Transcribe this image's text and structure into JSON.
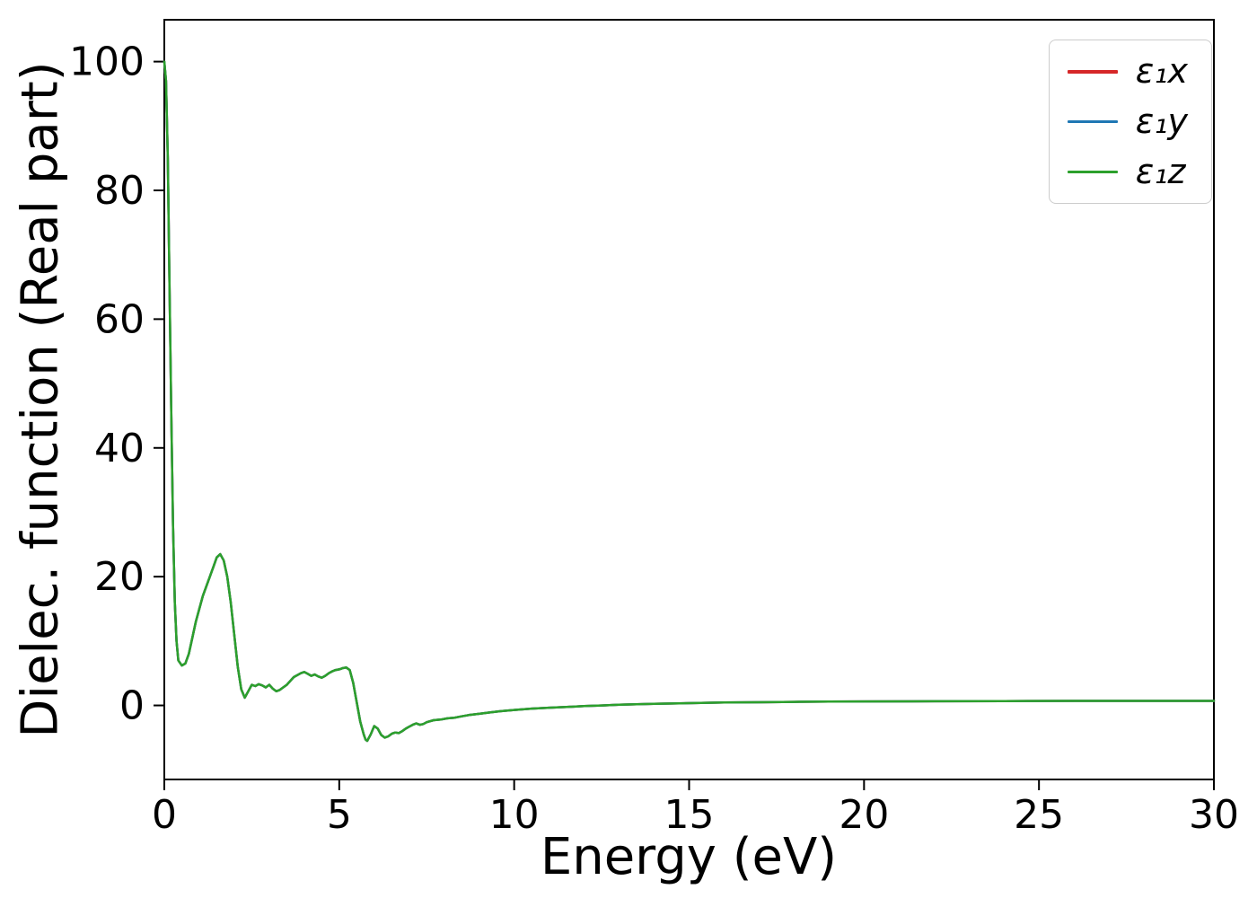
{
  "chart_data": {
    "type": "line",
    "title": "",
    "xlabel": "Energy (eV)",
    "ylabel": "Dielec. function (Real part)",
    "xlim": [
      0,
      30
    ],
    "ylim": [
      -11.5,
      106.5
    ],
    "xticks": [
      0,
      5,
      10,
      15,
      20,
      25,
      30
    ],
    "yticks": [
      0,
      20,
      40,
      60,
      80,
      100
    ],
    "grid": false,
    "legend_position": "upper right",
    "note": "All three series overlap almost exactly; the green (last-drawn) curve is the visible one.",
    "x": [
      0,
      0.05,
      0.1,
      0.15,
      0.2,
      0.25,
      0.3,
      0.35,
      0.4,
      0.5,
      0.6,
      0.7,
      0.8,
      0.9,
      1.0,
      1.1,
      1.2,
      1.3,
      1.4,
      1.5,
      1.6,
      1.7,
      1.8,
      1.9,
      2.0,
      2.1,
      2.2,
      2.3,
      2.4,
      2.5,
      2.6,
      2.7,
      2.8,
      2.9,
      3.0,
      3.1,
      3.2,
      3.3,
      3.5,
      3.7,
      3.9,
      4.0,
      4.1,
      4.2,
      4.3,
      4.4,
      4.5,
      4.6,
      4.7,
      4.8,
      4.9,
      5.0,
      5.1,
      5.2,
      5.3,
      5.4,
      5.5,
      5.6,
      5.7,
      5.75,
      5.8,
      5.9,
      6.0,
      6.1,
      6.2,
      6.3,
      6.4,
      6.5,
      6.6,
      6.7,
      6.8,
      6.9,
      7.0,
      7.1,
      7.2,
      7.3,
      7.4,
      7.5,
      7.7,
      7.9,
      8.1,
      8.3,
      8.5,
      8.7,
      9.0,
      9.3,
      9.6,
      10.0,
      10.5,
      11.0,
      11.5,
      12.0,
      12.5,
      13.0,
      14.0,
      15.0,
      16.0,
      17.0,
      18.0,
      19.0,
      20.0,
      22.0,
      24.0,
      26.0,
      28.0,
      30.0
    ],
    "series": [
      {
        "label": "ε₁x",
        "color": "#d62728",
        "values": [
          100,
          97,
          85,
          65,
          45,
          28,
          16,
          10,
          7,
          6.2,
          6.5,
          8.0,
          10.5,
          13,
          15,
          17,
          18.5,
          20,
          21.5,
          23,
          23.5,
          22.5,
          20,
          16,
          11,
          6,
          2.5,
          1.2,
          2.2,
          3.2,
          3.0,
          3.3,
          3.1,
          2.8,
          3.2,
          2.6,
          2.2,
          2.4,
          3.2,
          4.4,
          5.0,
          5.2,
          4.9,
          4.6,
          4.8,
          4.5,
          4.3,
          4.6,
          5.0,
          5.3,
          5.5,
          5.6,
          5.8,
          5.9,
          5.5,
          3.5,
          0.5,
          -2.5,
          -4.5,
          -5.3,
          -5.5,
          -4.5,
          -3.2,
          -3.6,
          -4.6,
          -5.0,
          -4.8,
          -4.4,
          -4.2,
          -4.3,
          -4.0,
          -3.6,
          -3.3,
          -3.0,
          -2.8,
          -3.0,
          -2.9,
          -2.6,
          -2.3,
          -2.2,
          -2.0,
          -1.9,
          -1.7,
          -1.5,
          -1.3,
          -1.1,
          -0.9,
          -0.7,
          -0.5,
          -0.35,
          -0.25,
          -0.1,
          0.0,
          0.1,
          0.25,
          0.35,
          0.45,
          0.5,
          0.55,
          0.6,
          0.62,
          0.65,
          0.68,
          0.7,
          0.7,
          0.7
        ]
      },
      {
        "label": "ε₁y",
        "color": "#1f77b4",
        "values": [
          100,
          97,
          85,
          65,
          45,
          28,
          16,
          10,
          7,
          6.2,
          6.5,
          8.0,
          10.5,
          13,
          15,
          17,
          18.5,
          20,
          21.5,
          23,
          23.5,
          22.5,
          20,
          16,
          11,
          6,
          2.5,
          1.2,
          2.2,
          3.2,
          3.0,
          3.3,
          3.1,
          2.8,
          3.2,
          2.6,
          2.2,
          2.4,
          3.2,
          4.4,
          5.0,
          5.2,
          4.9,
          4.6,
          4.8,
          4.5,
          4.3,
          4.6,
          5.0,
          5.3,
          5.5,
          5.6,
          5.8,
          5.9,
          5.5,
          3.5,
          0.5,
          -2.5,
          -4.5,
          -5.3,
          -5.5,
          -4.5,
          -3.2,
          -3.6,
          -4.6,
          -5.0,
          -4.8,
          -4.4,
          -4.2,
          -4.3,
          -4.0,
          -3.6,
          -3.3,
          -3.0,
          -2.8,
          -3.0,
          -2.9,
          -2.6,
          -2.3,
          -2.2,
          -2.0,
          -1.9,
          -1.7,
          -1.5,
          -1.3,
          -1.1,
          -0.9,
          -0.7,
          -0.5,
          -0.35,
          -0.25,
          -0.1,
          0.0,
          0.1,
          0.25,
          0.35,
          0.45,
          0.5,
          0.55,
          0.6,
          0.62,
          0.65,
          0.68,
          0.7,
          0.7,
          0.7
        ]
      },
      {
        "label": "ε₁z",
        "color": "#2ca02c",
        "values": [
          100,
          97,
          85,
          65,
          45,
          28,
          16,
          10,
          7,
          6.2,
          6.5,
          8.0,
          10.5,
          13,
          15,
          17,
          18.5,
          20,
          21.5,
          23,
          23.5,
          22.5,
          20,
          16,
          11,
          6,
          2.5,
          1.2,
          2.2,
          3.2,
          3.0,
          3.3,
          3.1,
          2.8,
          3.2,
          2.6,
          2.2,
          2.4,
          3.2,
          4.4,
          5.0,
          5.2,
          4.9,
          4.6,
          4.8,
          4.5,
          4.3,
          4.6,
          5.0,
          5.3,
          5.5,
          5.6,
          5.8,
          5.9,
          5.5,
          3.5,
          0.5,
          -2.5,
          -4.5,
          -5.3,
          -5.5,
          -4.5,
          -3.2,
          -3.6,
          -4.6,
          -5.0,
          -4.8,
          -4.4,
          -4.2,
          -4.3,
          -4.0,
          -3.6,
          -3.3,
          -3.0,
          -2.8,
          -3.0,
          -2.9,
          -2.6,
          -2.3,
          -2.2,
          -2.0,
          -1.9,
          -1.7,
          -1.5,
          -1.3,
          -1.1,
          -0.9,
          -0.7,
          -0.5,
          -0.35,
          -0.25,
          -0.1,
          0.0,
          0.1,
          0.25,
          0.35,
          0.45,
          0.5,
          0.55,
          0.6,
          0.62,
          0.65,
          0.68,
          0.7,
          0.7,
          0.7
        ]
      }
    ],
    "axis_color": "#000000",
    "background_color": "#ffffff"
  }
}
